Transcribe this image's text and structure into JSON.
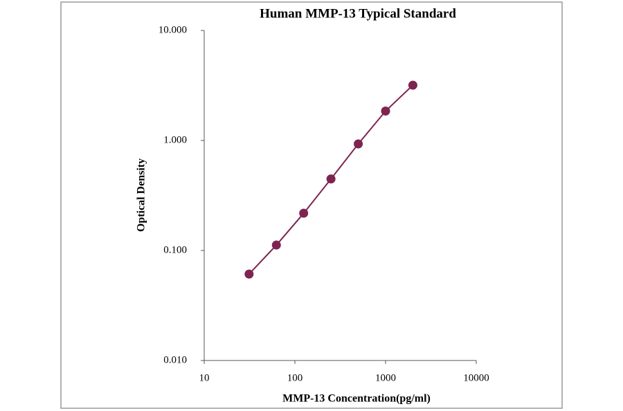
{
  "chart_data": {
    "type": "line",
    "title": "Human  MMP-13 Typical Standard",
    "x_label": "MMP-13  Concentration(pg/ml)",
    "y_label": "Optical  Density",
    "x": [
      31.25,
      62.5,
      125,
      250,
      500,
      1000,
      2000
    ],
    "series": [
      {
        "color": "#7d2450",
        "values": [
          0.061,
          0.112,
          0.218,
          0.447,
          0.93,
          1.85,
          3.18
        ]
      }
    ],
    "markers": true,
    "x_log": true,
    "y_log": true,
    "xlim": [
      10,
      10000
    ],
    "xticks": [
      10,
      100,
      1000,
      10000
    ],
    "ylim": [
      0.01,
      10
    ],
    "yticks": [
      {
        "value": 0.01,
        "label": "0.010"
      },
      {
        "value": 0.1,
        "label": "0.100"
      },
      {
        "value": 1,
        "label": "1.000"
      },
      {
        "value": 10,
        "label": "10.000"
      }
    ]
  }
}
